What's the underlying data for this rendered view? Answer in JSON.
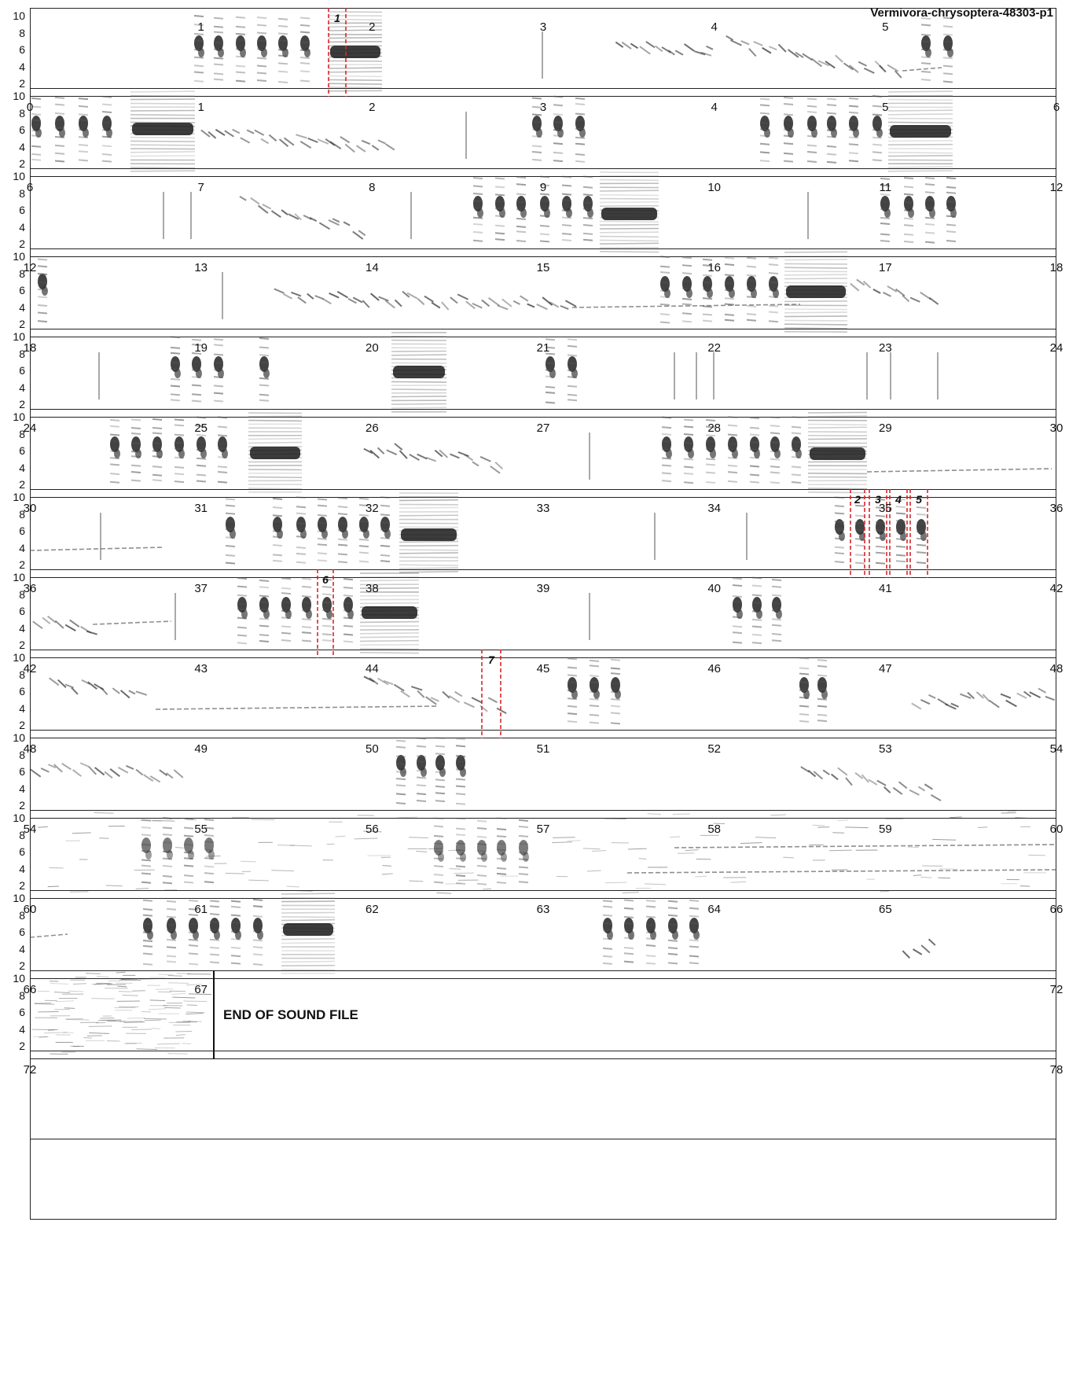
{
  "title": "Vermivora-chrysoptera-48303-p1",
  "freq_ticks": [
    "10",
    "8",
    "6",
    "4",
    "2"
  ],
  "end_text": "END OF SOUND FILE",
  "marker_labels": [
    "1",
    "2",
    "3",
    "4",
    "5",
    "6",
    "7"
  ],
  "rows": [
    {
      "labels": [
        "",
        "1",
        "2",
        "3",
        "4",
        "5",
        ""
      ]
    },
    {
      "labels": [
        "0",
        "1",
        "2",
        "3",
        "4",
        "5",
        "6"
      ]
    },
    {
      "labels": [
        "6",
        "7",
        "8",
        "9",
        "10",
        "11",
        "12"
      ]
    },
    {
      "labels": [
        "12",
        "13",
        "14",
        "15",
        "16",
        "17",
        "18"
      ]
    },
    {
      "labels": [
        "18",
        "19",
        "20",
        "21",
        "22",
        "23",
        "24"
      ]
    },
    {
      "labels": [
        "24",
        "25",
        "26",
        "27",
        "28",
        "29",
        "30"
      ]
    },
    {
      "labels": [
        "30",
        "31",
        "32",
        "33",
        "34",
        "35",
        "36"
      ]
    },
    {
      "labels": [
        "36",
        "37",
        "38",
        "39",
        "40",
        "41",
        "42"
      ]
    },
    {
      "labels": [
        "42",
        "43",
        "44",
        "45",
        "46",
        "47",
        "48"
      ]
    },
    {
      "labels": [
        "48",
        "49",
        "50",
        "51",
        "52",
        "53",
        "54"
      ]
    },
    {
      "labels": [
        "54",
        "55",
        "56",
        "57",
        "58",
        "59",
        "60"
      ]
    },
    {
      "labels": [
        "60",
        "61",
        "62",
        "63",
        "64",
        "65",
        "66"
      ]
    },
    {
      "labels": [
        "66",
        "67",
        "",
        "",
        "",
        "",
        "72"
      ]
    },
    {
      "labels": [
        "72",
        "",
        "",
        "",
        "",
        "",
        "78"
      ]
    }
  ],
  "style": {
    "ink": "#2a2a2a",
    "marker_color": "#d9262b"
  }
}
